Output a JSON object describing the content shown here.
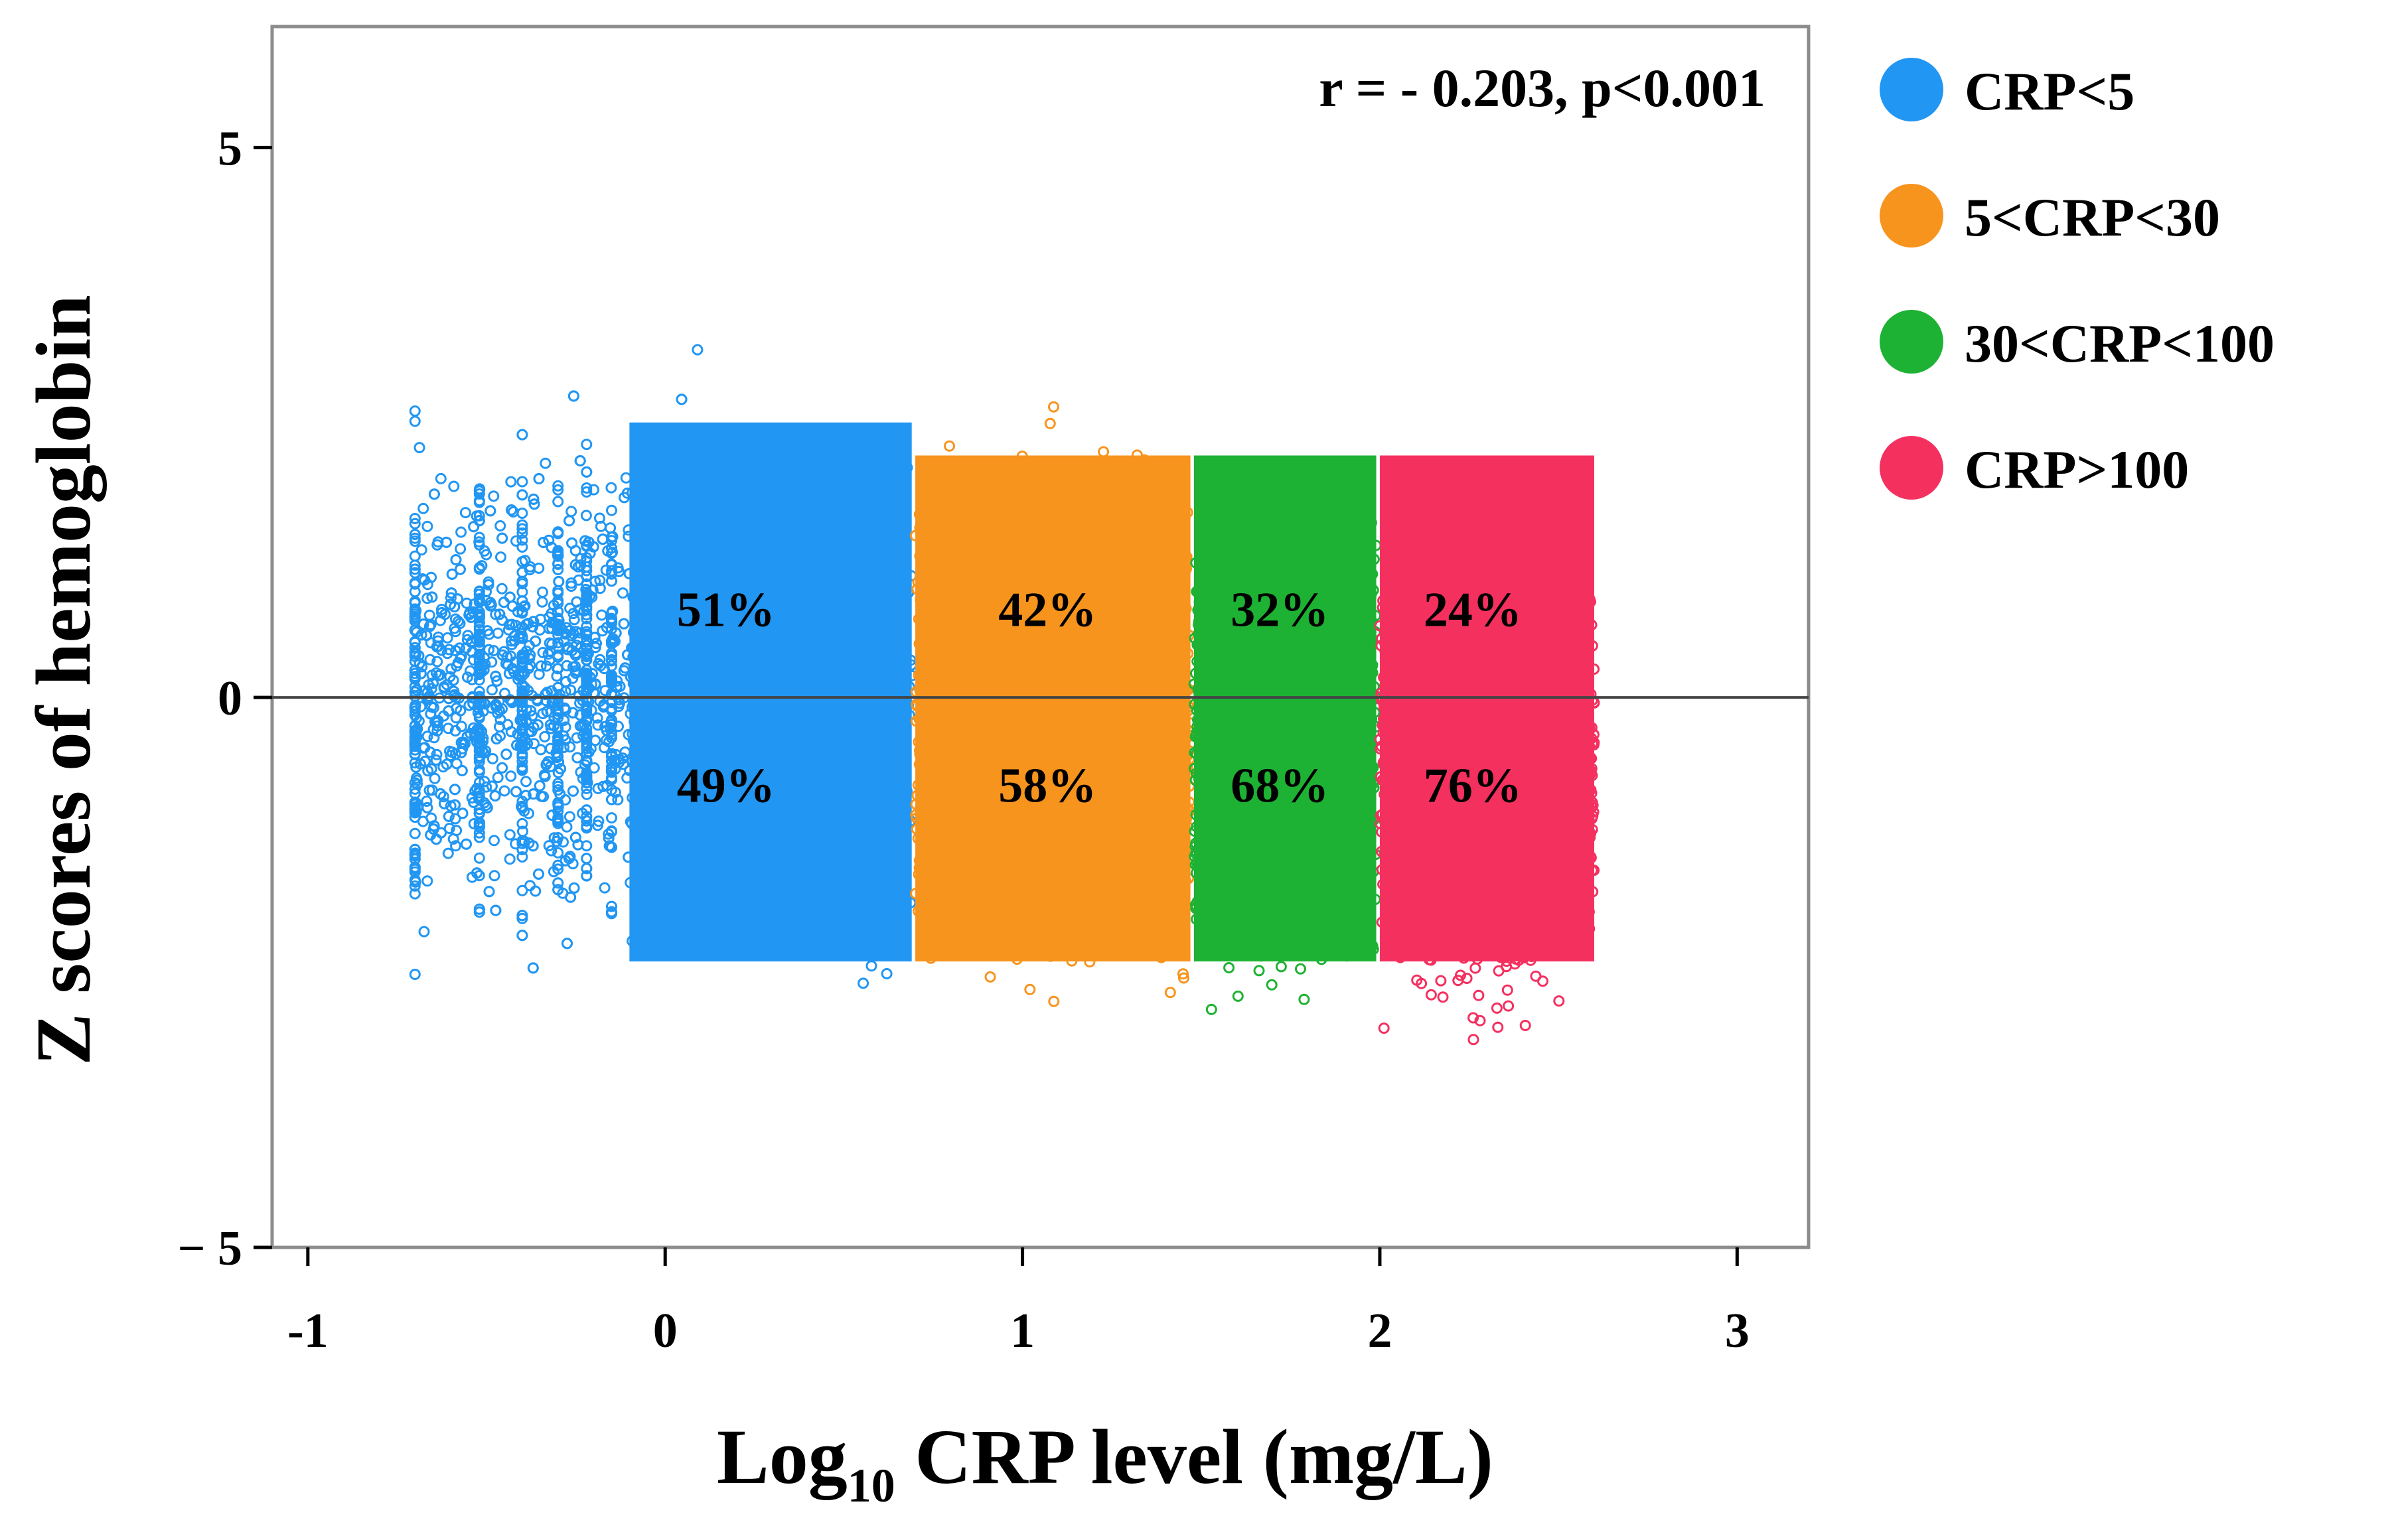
{
  "chart_data": {
    "type": "scatter",
    "title": "",
    "xlabel": {
      "prefix": "Log",
      "subscript": "10",
      "suffix": " CRP level (mg/L)"
    },
    "ylabel": "Z scores of hemoglobin",
    "xlim": [
      -1.1,
      3.2
    ],
    "ylim": [
      -5,
      6.1
    ],
    "xticks": [
      -1,
      0,
      1,
      2,
      3
    ],
    "xtick_labels": [
      "-1",
      "0",
      "1",
      "2",
      "3"
    ],
    "yticks": [
      5,
      0,
      -5
    ],
    "ytick_labels": [
      "5",
      "0",
      "− 5"
    ],
    "reference_line_y": 0,
    "annotation": "r = - 0.203, p<0.001",
    "series": [
      {
        "name": "CRP<5",
        "color": "#2196f3",
        "x_range": [
          -0.7,
          0.69
        ],
        "above_pct": "51%",
        "below_pct": "49%",
        "x_label_at": 0.17
      },
      {
        "name": "5<CRP<30",
        "color": "#f7941d",
        "x_range": [
          0.7,
          1.47
        ],
        "above_pct": "42%",
        "below_pct": "58%",
        "x_label_at": 1.07
      },
      {
        "name": "30<CRP<100",
        "color": "#1db233",
        "x_range": [
          1.48,
          1.99
        ],
        "above_pct": "32%",
        "below_pct": "68%",
        "x_label_at": 1.72
      },
      {
        "name": "CRP>100",
        "color": "#f4305f",
        "x_range": [
          2.0,
          2.6
        ],
        "above_pct": "24%",
        "below_pct": "76%",
        "x_label_at": 2.26
      }
    ],
    "pct_label_y_above": 0.65,
    "pct_label_y_below": -0.95,
    "legend_position": "right"
  }
}
